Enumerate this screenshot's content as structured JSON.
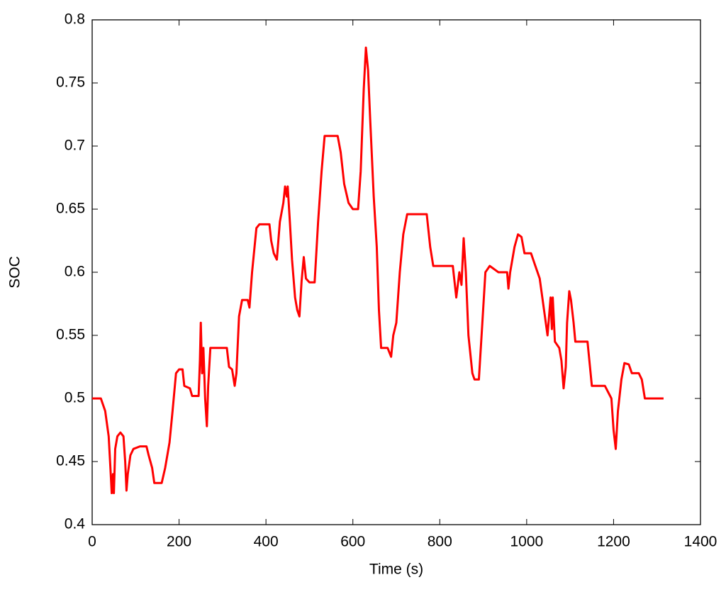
{
  "chart_data": {
    "type": "line",
    "x_label": "Time (s)",
    "y_label": "SOC",
    "xlim": [
      0,
      1400
    ],
    "xticks": [
      0,
      200,
      400,
      600,
      800,
      1000,
      1200,
      1400
    ],
    "ylim": [
      0.4,
      0.8
    ],
    "yticks": [
      0.4,
      0.45,
      0.5,
      0.55,
      0.6,
      0.65,
      0.7,
      0.75,
      0.8
    ],
    "grid": false,
    "series": [
      {
        "color": "#ff0000",
        "x": [
          0,
          20,
          30,
          38,
          42,
          45,
          48,
          50,
          53,
          58,
          65,
          72,
          76,
          79,
          82,
          88,
          95,
          110,
          125,
          130,
          138,
          143,
          160,
          168,
          178,
          185,
          193,
          200,
          208,
          212,
          225,
          230,
          245,
          248,
          250,
          253,
          256,
          260,
          264,
          267,
          272,
          290,
          310,
          315,
          322,
          328,
          332,
          338,
          345,
          358,
          362,
          368,
          378,
          385,
          408,
          412,
          418,
          425,
          432,
          440,
          444,
          448,
          450,
          455,
          460,
          467,
          472,
          477,
          482,
          487,
          492,
          500,
          512,
          520,
          528,
          535,
          565,
          572,
          580,
          590,
          600,
          612,
          618,
          625,
          630,
          635,
          640,
          648,
          655,
          660,
          665,
          680,
          688,
          693,
          700,
          708,
          716,
          725,
          770,
          778,
          785,
          830,
          838,
          845,
          850,
          855,
          860,
          866,
          875,
          880,
          890,
          898,
          905,
          915,
          935,
          955,
          958,
          962,
          972,
          980,
          988,
          995,
          1010,
          1020,
          1030,
          1040,
          1048,
          1055,
          1058,
          1060,
          1065,
          1075,
          1080,
          1085,
          1090,
          1093,
          1098,
          1102,
          1108,
          1112,
          1140,
          1150,
          1180,
          1195,
          1200,
          1205,
          1210,
          1218,
          1225,
          1235,
          1242,
          1258,
          1265,
          1272,
          1315
        ],
        "values": [
          0.5,
          0.5,
          0.49,
          0.47,
          0.445,
          0.425,
          0.44,
          0.425,
          0.46,
          0.47,
          0.473,
          0.47,
          0.45,
          0.427,
          0.44,
          0.455,
          0.46,
          0.462,
          0.462,
          0.455,
          0.445,
          0.433,
          0.433,
          0.445,
          0.465,
          0.49,
          0.52,
          0.523,
          0.523,
          0.51,
          0.508,
          0.502,
          0.502,
          0.53,
          0.56,
          0.52,
          0.54,
          0.5,
          0.478,
          0.51,
          0.54,
          0.54,
          0.54,
          0.525,
          0.523,
          0.51,
          0.52,
          0.565,
          0.578,
          0.578,
          0.572,
          0.6,
          0.635,
          0.638,
          0.638,
          0.625,
          0.615,
          0.61,
          0.64,
          0.655,
          0.668,
          0.66,
          0.668,
          0.64,
          0.61,
          0.58,
          0.57,
          0.565,
          0.593,
          0.612,
          0.595,
          0.592,
          0.592,
          0.64,
          0.68,
          0.708,
          0.708,
          0.695,
          0.67,
          0.655,
          0.65,
          0.65,
          0.68,
          0.745,
          0.778,
          0.76,
          0.72,
          0.66,
          0.62,
          0.57,
          0.54,
          0.54,
          0.533,
          0.55,
          0.56,
          0.6,
          0.63,
          0.646,
          0.646,
          0.62,
          0.605,
          0.605,
          0.58,
          0.6,
          0.59,
          0.627,
          0.6,
          0.55,
          0.52,
          0.515,
          0.515,
          0.56,
          0.6,
          0.605,
          0.6,
          0.6,
          0.587,
          0.6,
          0.62,
          0.63,
          0.628,
          0.615,
          0.615,
          0.605,
          0.595,
          0.57,
          0.55,
          0.58,
          0.555,
          0.58,
          0.545,
          0.54,
          0.53,
          0.508,
          0.525,
          0.56,
          0.585,
          0.578,
          0.56,
          0.545,
          0.545,
          0.51,
          0.51,
          0.5,
          0.475,
          0.46,
          0.49,
          0.515,
          0.528,
          0.527,
          0.52,
          0.52,
          0.515,
          0.5,
          0.5
        ]
      }
    ]
  }
}
